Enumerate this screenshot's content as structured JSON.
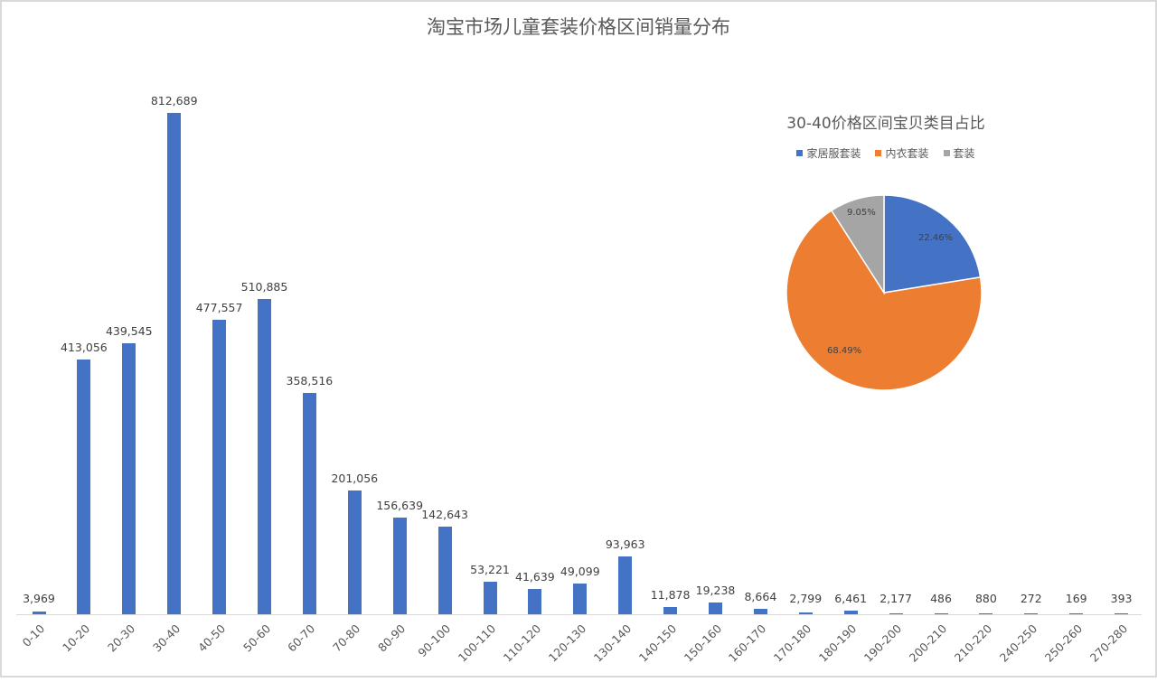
{
  "chart_data": [
    {
      "type": "bar",
      "title": "淘宝市场儿童套装价格区间销量分布",
      "xlabel": "",
      "ylabel": "",
      "grid": false,
      "color": "#4472c4",
      "categories": [
        "0-10",
        "10-20",
        "20-30",
        "30-40",
        "40-50",
        "50-60",
        "60-70",
        "70-80",
        "80-90",
        "90-100",
        "100-110",
        "110-120",
        "120-130",
        "130-140",
        "140-150",
        "150-160",
        "160-170",
        "170-180",
        "180-190",
        "190-200",
        "200-210",
        "210-220",
        "240-250",
        "250-260",
        "270-280"
      ],
      "values": [
        3969,
        413056,
        439545,
        812689,
        477557,
        510885,
        358516,
        201056,
        156639,
        142643,
        53221,
        41639,
        49099,
        93963,
        11878,
        19238,
        8664,
        2799,
        6461,
        2177,
        486,
        880,
        272,
        169,
        393
      ],
      "value_labels": [
        "3,969",
        "413,056",
        "439,545",
        "812,689",
        "477,557",
        "510,885",
        "358,516",
        "201,056",
        "156,639",
        "142,643",
        "53,221",
        "41,639",
        "49,099",
        "93,963",
        "11,878",
        "19,238",
        "8,664",
        "2,799",
        "6,461",
        "2,177",
        "486",
        "880",
        "272",
        "169",
        "393"
      ]
    },
    {
      "type": "pie",
      "title": "30-40价格区间宝贝类目占比",
      "legend_position": "top",
      "categories": [
        "家居服套装",
        "内衣套装",
        "套装"
      ],
      "values": [
        22.46,
        68.49,
        9.05
      ],
      "labels": [
        "22.46%",
        "68.49%",
        "9.05%"
      ],
      "colors": [
        "#4472c4",
        "#ed7d31",
        "#a5a5a5"
      ]
    }
  ],
  "main": {
    "title": "淘宝市场儿童套装价格区间销量分布"
  },
  "pie": {
    "title": "30-40价格区间宝贝类目占比",
    "legend": [
      {
        "label": "家居服套装",
        "color": "#4472c4"
      },
      {
        "label": "内衣套装",
        "color": "#ed7d31"
      },
      {
        "label": "套装",
        "color": "#a5a5a5"
      }
    ],
    "labels": [
      "22.46%",
      "68.49%",
      "9.05%"
    ]
  }
}
